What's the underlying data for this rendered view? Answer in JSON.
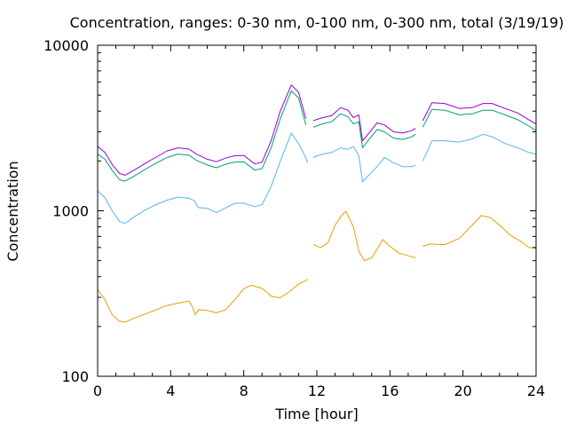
{
  "chart_data": {
    "type": "line",
    "title": "Concentration, ranges: 0-30 nm, 0-100 nm, 0-300 nm, total (3/19/19)",
    "xlabel": "Time [hour]",
    "ylabel": "Concentration",
    "xlim": [
      0,
      24
    ],
    "ylim": [
      100,
      10000
    ],
    "yscale": "log",
    "grid": false,
    "xticks": [
      0,
      4,
      8,
      12,
      16,
      20,
      24
    ],
    "xtick_labels": [
      "0",
      "4",
      "8",
      "12",
      "16",
      "20",
      "24"
    ],
    "yticks": [
      100,
      1000,
      10000
    ],
    "ytick_labels": [
      "100",
      "1000",
      "10000"
    ],
    "series": [
      {
        "color": "#e69f00",
        "segments": [
          [
            [
              0,
              335
            ],
            [
              0.4,
              290
            ],
            [
              0.8,
              235
            ],
            [
              1.2,
              215
            ],
            [
              1.5,
              212
            ],
            [
              2,
              225
            ],
            [
              2.6,
              238
            ],
            [
              3.2,
              252
            ],
            [
              3.8,
              268
            ],
            [
              4.5,
              278
            ],
            [
              5,
              285
            ],
            [
              5.2,
              262
            ],
            [
              5.35,
              235
            ],
            [
              5.5,
              252
            ],
            [
              6,
              250
            ],
            [
              6.5,
              242
            ],
            [
              7,
              252
            ],
            [
              7.5,
              290
            ],
            [
              8,
              338
            ],
            [
              8.4,
              355
            ],
            [
              9,
              340
            ],
            [
              9.5,
              305
            ],
            [
              10,
              298
            ],
            [
              10.5,
              325
            ],
            [
              11,
              360
            ],
            [
              11.5,
              385
            ]
          ],
          [
            [
              11.8,
              625
            ],
            [
              12.2,
              598
            ],
            [
              12.6,
              640
            ],
            [
              13,
              820
            ],
            [
              13.4,
              950
            ],
            [
              13.6,
              990
            ],
            [
              14,
              800
            ],
            [
              14.3,
              570
            ],
            [
              14.6,
              500
            ],
            [
              15,
              520
            ],
            [
              15.4,
              610
            ],
            [
              15.6,
              670
            ],
            [
              16,
              610
            ],
            [
              16.5,
              555
            ],
            [
              17,
              535
            ],
            [
              17.4,
              520
            ]
          ],
          [
            [
              17.8,
              610
            ],
            [
              18.2,
              630
            ],
            [
              19,
              625
            ],
            [
              19.8,
              680
            ],
            [
              20.5,
              820
            ],
            [
              21,
              935
            ],
            [
              21.5,
              910
            ],
            [
              22,
              820
            ],
            [
              22.6,
              710
            ],
            [
              23.2,
              650
            ],
            [
              23.6,
              600
            ],
            [
              24,
              595
            ]
          ]
        ]
      },
      {
        "color": "#56b4e9",
        "segments": [
          [
            [
              0,
              1320
            ],
            [
              0.4,
              1200
            ],
            [
              0.8,
              1000
            ],
            [
              1.2,
              860
            ],
            [
              1.5,
              840
            ],
            [
              2,
              920
            ],
            [
              2.6,
              1010
            ],
            [
              3.2,
              1090
            ],
            [
              3.8,
              1160
            ],
            [
              4.4,
              1210
            ],
            [
              5,
              1190
            ],
            [
              5.3,
              1150
            ],
            [
              5.5,
              1045
            ],
            [
              6,
              1035
            ],
            [
              6.5,
              975
            ],
            [
              7,
              1040
            ],
            [
              7.5,
              1110
            ],
            [
              8,
              1110
            ],
            [
              8.6,
              1060
            ],
            [
              9,
              1090
            ],
            [
              9.5,
              1400
            ],
            [
              10,
              2000
            ],
            [
              10.6,
              2950
            ],
            [
              11,
              2550
            ],
            [
              11.3,
              2200
            ],
            [
              11.5,
              1950
            ]
          ],
          [
            [
              11.8,
              2100
            ],
            [
              12.3,
              2200
            ],
            [
              12.8,
              2250
            ],
            [
              13.3,
              2400
            ],
            [
              13.7,
              2350
            ],
            [
              14,
              2450
            ],
            [
              14.3,
              2150
            ],
            [
              14.5,
              1500
            ],
            [
              14.8,
              1620
            ],
            [
              15.3,
              1850
            ],
            [
              15.7,
              2100
            ],
            [
              16.2,
              1950
            ],
            [
              16.7,
              1850
            ],
            [
              17.2,
              1850
            ],
            [
              17.4,
              1880
            ]
          ],
          [
            [
              17.8,
              2000
            ],
            [
              18.3,
              2650
            ],
            [
              19,
              2650
            ],
            [
              19.8,
              2600
            ],
            [
              20.5,
              2720
            ],
            [
              21.1,
              2900
            ],
            [
              21.6,
              2800
            ],
            [
              22.3,
              2550
            ],
            [
              23,
              2400
            ],
            [
              23.6,
              2250
            ],
            [
              24,
              2200
            ]
          ]
        ]
      },
      {
        "color": "#009e73",
        "segments": [
          [
            [
              0,
              2200
            ],
            [
              0.4,
              2050
            ],
            [
              0.8,
              1750
            ],
            [
              1.2,
              1540
            ],
            [
              1.5,
              1510
            ],
            [
              2,
              1620
            ],
            [
              2.6,
              1780
            ],
            [
              3.2,
              1940
            ],
            [
              3.8,
              2100
            ],
            [
              4.4,
              2200
            ],
            [
              5,
              2170
            ],
            [
              5.4,
              2020
            ],
            [
              6,
              1890
            ],
            [
              6.5,
              1820
            ],
            [
              7,
              1910
            ],
            [
              7.5,
              1970
            ],
            [
              8,
              1980
            ],
            [
              8.6,
              1760
            ],
            [
              9,
              1800
            ],
            [
              9.5,
              2400
            ],
            [
              10,
              3600
            ],
            [
              10.6,
              5300
            ],
            [
              11,
              4800
            ],
            [
              11.4,
              3300
            ]
          ],
          [
            [
              11.8,
              3200
            ],
            [
              12.3,
              3350
            ],
            [
              12.8,
              3450
            ],
            [
              13.3,
              3850
            ],
            [
              13.7,
              3700
            ],
            [
              14,
              3350
            ],
            [
              14.3,
              3450
            ],
            [
              14.5,
              2400
            ],
            [
              14.8,
              2650
            ],
            [
              15.3,
              3100
            ],
            [
              15.7,
              3000
            ],
            [
              16.2,
              2750
            ],
            [
              16.7,
              2700
            ],
            [
              17.2,
              2800
            ],
            [
              17.4,
              2900
            ]
          ],
          [
            [
              17.8,
              3200
            ],
            [
              18.3,
              4100
            ],
            [
              19,
              4050
            ],
            [
              19.8,
              3800
            ],
            [
              20.5,
              3850
            ],
            [
              21.1,
              4050
            ],
            [
              21.6,
              4050
            ],
            [
              22.3,
              3800
            ],
            [
              23,
              3550
            ],
            [
              23.6,
              3250
            ],
            [
              24,
              3050
            ]
          ]
        ]
      },
      {
        "color": "#9400d3",
        "segments": [
          [
            [
              0,
              2450
            ],
            [
              0.4,
              2250
            ],
            [
              0.8,
              1900
            ],
            [
              1.2,
              1680
            ],
            [
              1.5,
              1640
            ],
            [
              2,
              1760
            ],
            [
              2.6,
              1930
            ],
            [
              3.2,
              2110
            ],
            [
              3.8,
              2300
            ],
            [
              4.4,
              2400
            ],
            [
              5,
              2360
            ],
            [
              5.4,
              2200
            ],
            [
              6,
              2050
            ],
            [
              6.5,
              1980
            ],
            [
              7,
              2080
            ],
            [
              7.5,
              2150
            ],
            [
              8,
              2160
            ],
            [
              8.6,
              1920
            ],
            [
              9,
              1970
            ],
            [
              9.5,
              2650
            ],
            [
              10,
              4000
            ],
            [
              10.6,
              5750
            ],
            [
              11,
              5200
            ],
            [
              11.4,
              3600
            ]
          ],
          [
            [
              11.8,
              3500
            ],
            [
              12.3,
              3650
            ],
            [
              12.8,
              3750
            ],
            [
              13.3,
              4200
            ],
            [
              13.7,
              4050
            ],
            [
              14,
              3650
            ],
            [
              14.3,
              3800
            ],
            [
              14.5,
              2650
            ],
            [
              14.8,
              2900
            ],
            [
              15.3,
              3400
            ],
            [
              15.7,
              3300
            ],
            [
              16.2,
              3000
            ],
            [
              16.7,
              2950
            ],
            [
              17.2,
              3050
            ],
            [
              17.4,
              3150
            ]
          ],
          [
            [
              17.8,
              3500
            ],
            [
              18.3,
              4500
            ],
            [
              19,
              4450
            ],
            [
              19.8,
              4150
            ],
            [
              20.5,
              4200
            ],
            [
              21.1,
              4450
            ],
            [
              21.6,
              4450
            ],
            [
              22.3,
              4150
            ],
            [
              23,
              3900
            ],
            [
              23.6,
              3550
            ],
            [
              24,
              3350
            ]
          ]
        ]
      }
    ]
  }
}
